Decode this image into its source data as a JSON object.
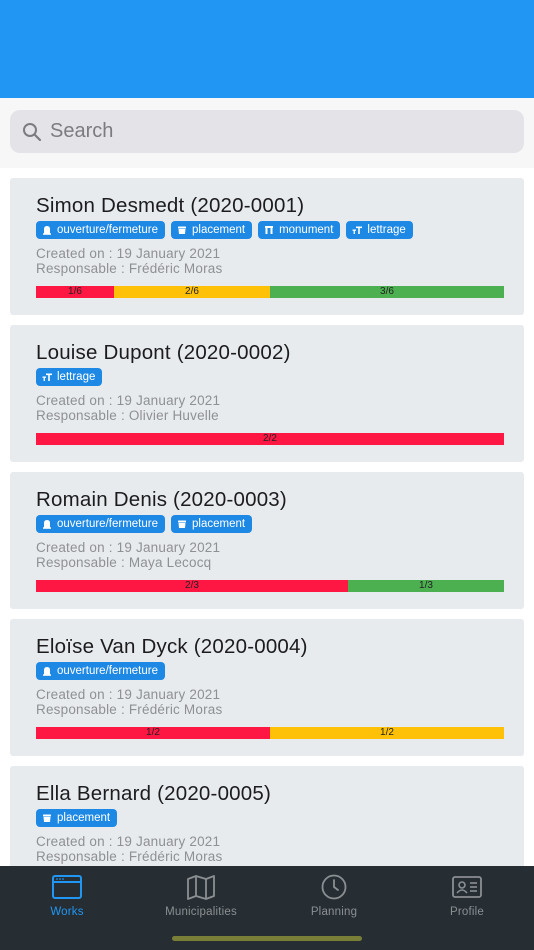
{
  "search": {
    "placeholder": "Search"
  },
  "colors": {
    "header": "#2196f3",
    "tag": "#1e88e5",
    "red": "#ff1744",
    "yellow": "#ffc107",
    "green": "#4caf50",
    "tab_active": "#2196f3"
  },
  "cards": [
    {
      "title": "Simon Desmedt (2020-0001)",
      "tags": [
        {
          "label": "ouverture/fermeture",
          "icon": "tombstone-icon"
        },
        {
          "label": "placement",
          "icon": "urn-icon"
        },
        {
          "label": "monument",
          "icon": "monument-icon"
        },
        {
          "label": "lettrage",
          "icon": "text-icon"
        }
      ],
      "created": "Created on : 19 January 2021",
      "responsable": "Responsable : Frédéric Moras",
      "progress": [
        {
          "label": "1/6",
          "fraction": 0.1667,
          "color": "red"
        },
        {
          "label": "2/6",
          "fraction": 0.3333,
          "color": "yellow"
        },
        {
          "label": "3/6",
          "fraction": 0.5,
          "color": "green"
        }
      ]
    },
    {
      "title": "Louise Dupont (2020-0002)",
      "tags": [
        {
          "label": "lettrage",
          "icon": "text-icon"
        }
      ],
      "created": "Created on : 19 January 2021",
      "responsable": "Responsable : Olivier Huvelle",
      "progress": [
        {
          "label": "2/2",
          "fraction": 1.0,
          "color": "red"
        }
      ]
    },
    {
      "title": "Romain Denis (2020-0003)",
      "tags": [
        {
          "label": "ouverture/fermeture",
          "icon": "tombstone-icon"
        },
        {
          "label": "placement",
          "icon": "urn-icon"
        }
      ],
      "created": "Created on : 19 January 2021",
      "responsable": "Responsable : Maya Lecocq",
      "progress": [
        {
          "label": "2/3",
          "fraction": 0.6667,
          "color": "red"
        },
        {
          "label": "1/3",
          "fraction": 0.3333,
          "color": "green"
        }
      ]
    },
    {
      "title": "Eloïse Van Dyck (2020-0004)",
      "tags": [
        {
          "label": "ouverture/fermeture",
          "icon": "tombstone-icon"
        }
      ],
      "created": "Created on : 19 January 2021",
      "responsable": "Responsable : Frédéric Moras",
      "progress": [
        {
          "label": "1/2",
          "fraction": 0.5,
          "color": "red"
        },
        {
          "label": "1/2",
          "fraction": 0.5,
          "color": "yellow"
        }
      ]
    },
    {
      "title": "Ella Bernard (2020-0005)",
      "tags": [
        {
          "label": "placement",
          "icon": "urn-icon"
        }
      ],
      "created": "Created on : 19 January 2021",
      "responsable": "Responsable : Frédéric Moras",
      "progress": []
    }
  ],
  "tabs": [
    {
      "label": "Works",
      "icon": "works-icon",
      "active": true
    },
    {
      "label": "Municipalities",
      "icon": "map-icon",
      "active": false
    },
    {
      "label": "Planning",
      "icon": "clock-icon",
      "active": false
    },
    {
      "label": "Profile",
      "icon": "profile-card-icon",
      "active": false
    }
  ]
}
